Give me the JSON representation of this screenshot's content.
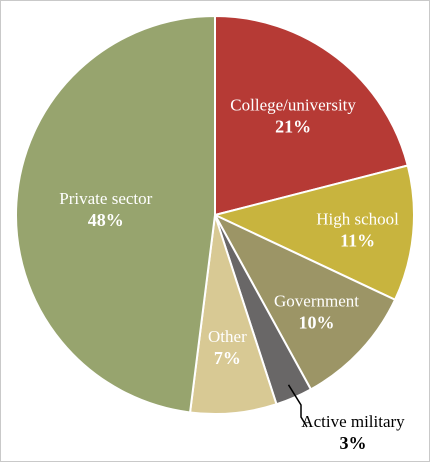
{
  "chart_data": {
    "type": "pie",
    "title": "",
    "slices": [
      {
        "label": "College/university",
        "value": 21,
        "value_label": "21%",
        "color": "#b63a35",
        "text_color": "#ffffff"
      },
      {
        "label": "High school",
        "value": 11,
        "value_label": "11%",
        "color": "#c8b43e",
        "text_color": "#ffffff"
      },
      {
        "label": "Government",
        "value": 10,
        "value_label": "10%",
        "color": "#9c9566",
        "text_color": "#ffffff"
      },
      {
        "label": "Active military",
        "value": 3,
        "value_label": "3%",
        "color": "#696767",
        "text_color": "#000000"
      },
      {
        "label": "Other",
        "value": 7,
        "value_label": "7%",
        "color": "#d8c994",
        "text_color": "#ffffff"
      },
      {
        "label": "Private sector",
        "value": 48,
        "value_label": "48%",
        "color": "#97a46e",
        "text_color": "#ffffff"
      }
    ]
  }
}
